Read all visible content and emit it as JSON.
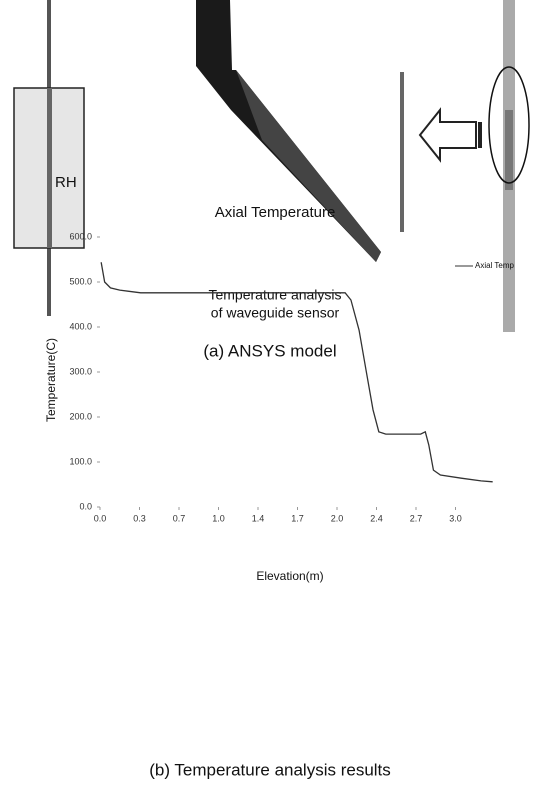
{
  "panel_a": {
    "rod_label": "RH",
    "annotation": [
      "Temperature analysis",
      "of waveguide sensor"
    ],
    "caption": "(a) ANSYS model"
  },
  "chart_data": {
    "type": "line",
    "title": "Axial Temperature",
    "x_label": "Elevation(m)",
    "y_label": "Temperature(C)",
    "x": [
      0.01,
      0.04,
      0.09,
      0.17,
      0.35,
      0.86,
      2.11,
      2.16,
      2.23,
      2.29,
      2.35,
      2.4,
      2.46,
      2.76,
      2.8,
      2.83,
      2.87,
      2.93,
      3.11,
      3.28,
      3.38
    ],
    "series": [
      {
        "name": "Axial Temp",
        "color": "#333333",
        "values": [
          544,
          500,
          487,
          482,
          476,
          476,
          476,
          460,
          393,
          304,
          216,
          167,
          162,
          162,
          167,
          138,
          82,
          71,
          64,
          58,
          56
        ]
      }
    ],
    "xlim": [
      0,
      3.4
    ],
    "xticks": [
      {
        "value": 0,
        "label": "0.0"
      },
      {
        "value": 0.34,
        "label": "0.3"
      },
      {
        "value": 0.68,
        "label": "0.7"
      },
      {
        "value": 1.02,
        "label": "1.0"
      },
      {
        "value": 1.36,
        "label": "1.4"
      },
      {
        "value": 1.7,
        "label": "1.7"
      },
      {
        "value": 2.04,
        "label": "2.0"
      },
      {
        "value": 2.38,
        "label": "2.4"
      },
      {
        "value": 2.72,
        "label": "2.7"
      },
      {
        "value": 3.06,
        "label": "3.0"
      }
    ],
    "ylim": [
      0,
      600
    ],
    "yticks": [
      {
        "value": 0,
        "label": "0.0"
      },
      {
        "value": 100,
        "label": "100.0"
      },
      {
        "value": 200,
        "label": "200.0"
      },
      {
        "value": 300,
        "label": "300.0"
      },
      {
        "value": 400,
        "label": "400.0"
      },
      {
        "value": 500,
        "label": "500.0"
      },
      {
        "value": 600,
        "label": "600.0"
      }
    ],
    "legend": "upper right",
    "grid": false
  },
  "caption_b": "(b) Temperature analysis results"
}
